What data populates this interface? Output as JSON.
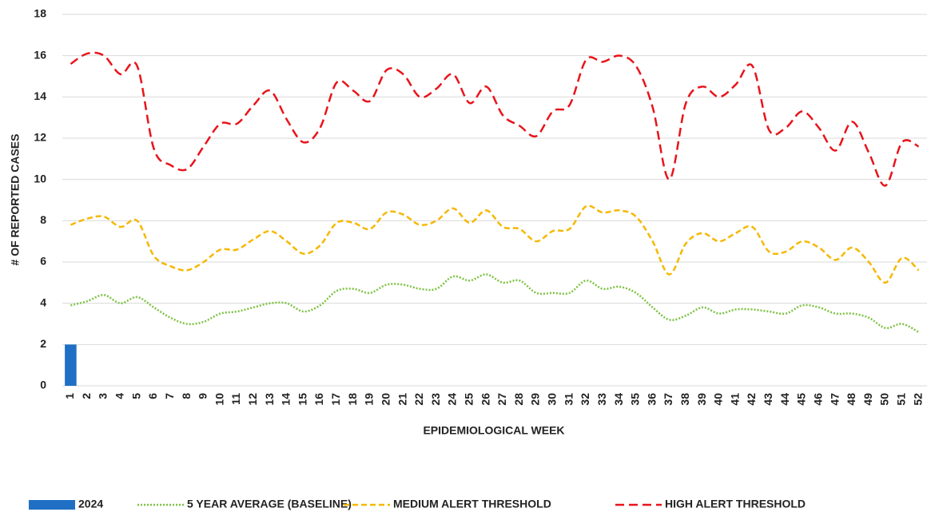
{
  "chart_data": {
    "type": "bar-line",
    "x_label": "EPIDEMIOLOGICAL WEEK",
    "y_label": "# OF REPORTED CASES",
    "categories": [
      "1",
      "2",
      "3",
      "4",
      "5",
      "6",
      "7",
      "8",
      "9",
      "10",
      "11",
      "12",
      "13",
      "14",
      "15",
      "16",
      "17",
      "18",
      "19",
      "20",
      "21",
      "22",
      "23",
      "24",
      "25",
      "26",
      "27",
      "28",
      "29",
      "30",
      "31",
      "32",
      "33",
      "34",
      "35",
      "36",
      "37",
      "38",
      "39",
      "40",
      "41",
      "42",
      "43",
      "44",
      "45",
      "46",
      "47",
      "48",
      "49",
      "50",
      "51",
      "52"
    ],
    "ylim": [
      0,
      18
    ],
    "yticks": [
      0,
      2,
      4,
      6,
      8,
      10,
      12,
      14,
      16,
      18
    ],
    "grid": true,
    "legend": "bottom",
    "series": [
      {
        "name": "2024",
        "type": "bar",
        "color": "#1f6fc5",
        "values": [
          2,
          null,
          null,
          null,
          null,
          null,
          null,
          null,
          null,
          null,
          null,
          null,
          null,
          null,
          null,
          null,
          null,
          null,
          null,
          null,
          null,
          null,
          null,
          null,
          null,
          null,
          null,
          null,
          null,
          null,
          null,
          null,
          null,
          null,
          null,
          null,
          null,
          null,
          null,
          null,
          null,
          null,
          null,
          null,
          null,
          null,
          null,
          null,
          null,
          null,
          null,
          null
        ]
      },
      {
        "name": "5 YEAR AVERAGE (BASELINE)",
        "type": "line",
        "style": "dotted",
        "color": "#7cc242",
        "values": [
          3.9,
          4.1,
          4.4,
          4.0,
          4.3,
          3.8,
          3.3,
          3.0,
          3.1,
          3.5,
          3.6,
          3.8,
          4.0,
          4.0,
          3.6,
          3.9,
          4.6,
          4.7,
          4.5,
          4.9,
          4.9,
          4.7,
          4.7,
          5.3,
          5.1,
          5.4,
          5.0,
          5.1,
          4.5,
          4.5,
          4.5,
          5.1,
          4.7,
          4.8,
          4.5,
          3.8,
          3.2,
          3.4,
          3.8,
          3.5,
          3.7,
          3.7,
          3.6,
          3.5,
          3.9,
          3.8,
          3.5,
          3.5,
          3.3,
          2.8,
          3.0,
          2.6
        ]
      },
      {
        "name": "MEDIUM ALERT THRESHOLD",
        "type": "line",
        "style": "dashed",
        "color": "#f5b800",
        "values": [
          7.8,
          8.1,
          8.2,
          7.7,
          8.0,
          6.3,
          5.8,
          5.6,
          6.0,
          6.6,
          6.6,
          7.1,
          7.5,
          7.0,
          6.4,
          6.8,
          7.9,
          7.9,
          7.6,
          8.4,
          8.3,
          7.8,
          8.0,
          8.6,
          7.9,
          8.5,
          7.7,
          7.6,
          7.0,
          7.5,
          7.6,
          8.7,
          8.4,
          8.5,
          8.2,
          7.0,
          5.4,
          6.9,
          7.4,
          7.0,
          7.4,
          7.7,
          6.5,
          6.5,
          7.0,
          6.7,
          6.1,
          6.7,
          6.0,
          5.0,
          6.2,
          5.6
        ]
      },
      {
        "name": "HIGH ALERT THRESHOLD",
        "type": "line",
        "style": "longdash",
        "color": "#e8141b",
        "values": [
          15.6,
          16.1,
          16.0,
          15.1,
          15.5,
          11.5,
          10.7,
          10.5,
          11.6,
          12.7,
          12.7,
          13.6,
          14.3,
          12.9,
          11.8,
          12.5,
          14.7,
          14.3,
          13.8,
          15.3,
          15.1,
          14.0,
          14.4,
          15.1,
          13.7,
          14.5,
          13.1,
          12.6,
          12.1,
          13.3,
          13.6,
          15.8,
          15.7,
          16.0,
          15.5,
          13.5,
          10.0,
          13.7,
          14.5,
          14.0,
          14.6,
          15.5,
          12.4,
          12.5,
          13.3,
          12.5,
          11.4,
          12.8,
          11.3,
          9.7,
          11.8,
          11.6
        ]
      }
    ]
  }
}
